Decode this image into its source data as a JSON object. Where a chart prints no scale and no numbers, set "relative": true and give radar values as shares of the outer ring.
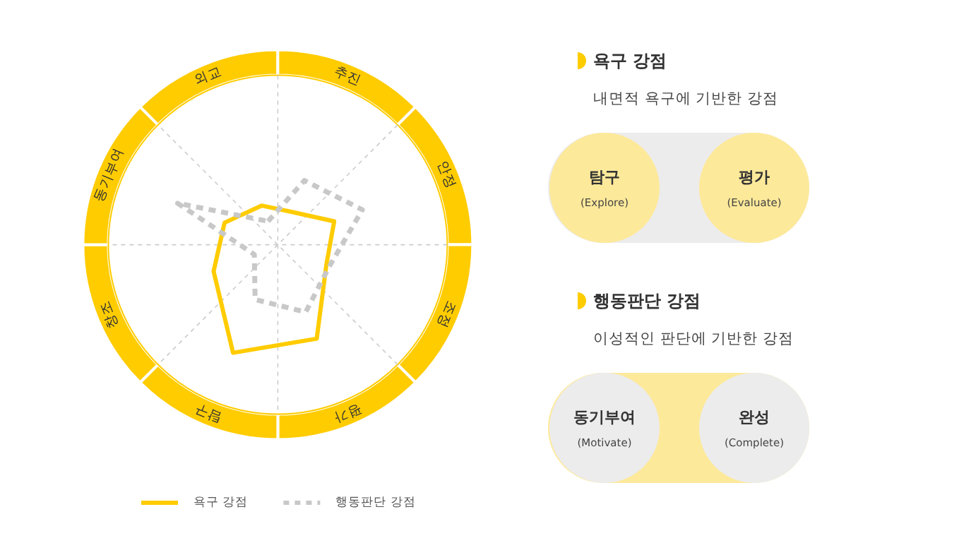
{
  "chart_data": [
    {
      "type": "radar",
      "categories": [
        "외교",
        "추진",
        "안정",
        "조정",
        "평가",
        "탐구",
        "창조",
        "동기부여"
      ],
      "relative": true,
      "grid": true,
      "legend": "bottom",
      "marker": "none",
      "series": [
        {
          "name": "욕구 강점",
          "color": "#ffcc00",
          "line_style": "solid",
          "values": [
            0.25,
            0.21,
            0.36,
            0.31,
            0.6,
            0.69,
            0.41,
            0.34
          ]
        },
        {
          "name": "행동판단 강점",
          "color": "#c8c8c8",
          "line_style": "dashed",
          "values": [
            0.15,
            0.41,
            0.54,
            0.33,
            0.43,
            0.35,
            0.15,
            0.64
          ]
        }
      ]
    },
    {
      "type": "other",
      "title": "욕구 강점",
      "subtitle": "내면적 욕구에 기반한 강점",
      "annotations": [
        "탐구",
        "(Explore)",
        "평가",
        "(Evaluate)"
      ]
    },
    {
      "type": "other",
      "title": "행동판단 강점",
      "subtitle": "이성적인 판단에 기반한 강점",
      "annotations": [
        "동기부여",
        "(Motivate)",
        "완성",
        "(Complete)"
      ]
    }
  ]
}
